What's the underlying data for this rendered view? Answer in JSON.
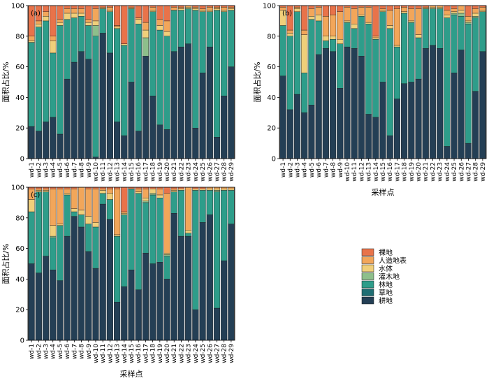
{
  "colors": {
    "裸地": "#E8734A",
    "人造地表": "#F2A65A",
    "水体": "#F0CF7A",
    "灌木地": "#8DBF8B",
    "林地": "#2E9D8A",
    "草地": "#1F6E73",
    "耕地": "#243F55"
  },
  "legend": [
    "裸地",
    "人造地表",
    "水体",
    "灌木地",
    "林地",
    "草地",
    "耕地"
  ],
  "chart_data": [
    {
      "type": "bar",
      "stacked": true,
      "panel_label": "(a)",
      "xlabel": "",
      "ylabel": "面积占比/%",
      "ylim": [
        0,
        100
      ],
      "yticks": [
        0,
        20,
        40,
        60,
        80,
        100
      ],
      "categories": [
        "wd-1",
        "wd-2",
        "wd-3",
        "wd-4",
        "wd-5",
        "wd-6",
        "wd-7",
        "wd-8",
        "wd-9",
        "wd-10",
        "wd-11",
        "wd-12",
        "wd-13",
        "wd-14",
        "wd-15",
        "wd-16",
        "wd-17",
        "wd-18",
        "wd-19",
        "wd-20",
        "wd-21",
        "wd-22",
        "wd-23",
        "wd-24",
        "wd-25",
        "wd-26",
        "wd-27",
        "wd-28",
        "wd-29"
      ],
      "series": [
        {
          "name": "耕地",
          "values": [
            21,
            18,
            24,
            27,
            16,
            52,
            63,
            70,
            65,
            1,
            82,
            69,
            24,
            15,
            50,
            18,
            67,
            41,
            22,
            19,
            70,
            73,
            75,
            20,
            56,
            73,
            14,
            41,
            60
          ]
        },
        {
          "name": "草地",
          "values": [
            0,
            0,
            0,
            0,
            0,
            0,
            0,
            0,
            0,
            0,
            0,
            0,
            0,
            0,
            0,
            0,
            0,
            0,
            0,
            0,
            0,
            0,
            0,
            0,
            0,
            0,
            0,
            0,
            0
          ]
        },
        {
          "name": "林地",
          "values": [
            55,
            68,
            66,
            42,
            71,
            39,
            29,
            23,
            22,
            79,
            16,
            27,
            61,
            59,
            48,
            70,
            0,
            55,
            62,
            61,
            27,
            24,
            23,
            77,
            40,
            23,
            83,
            55,
            37
          ]
        },
        {
          "name": "灌木地",
          "values": [
            0,
            0,
            0,
            0,
            0,
            0,
            0,
            0,
            0,
            7,
            0,
            0,
            0,
            0,
            0,
            0,
            12,
            0,
            0,
            0,
            0,
            0,
            0,
            0,
            0,
            0,
            0,
            0,
            0
          ]
        },
        {
          "name": "水体",
          "values": [
            1,
            2,
            3,
            8,
            2,
            4,
            3,
            2,
            2,
            3,
            0,
            1,
            1,
            1,
            0,
            3,
            5,
            1,
            3,
            3,
            0,
            1,
            1,
            1,
            1,
            1,
            1,
            1,
            1
          ]
        },
        {
          "name": "人造地表",
          "values": [
            3,
            2,
            3,
            3,
            2,
            3,
            3,
            3,
            2,
            8,
            1,
            2,
            1,
            0,
            1,
            1,
            5,
            2,
            4,
            7,
            2,
            1,
            1,
            1,
            1,
            2,
            1,
            2,
            1
          ]
        },
        {
          "name": "裸地",
          "values": [
            20,
            10,
            4,
            20,
            9,
            2,
            2,
            2,
            9,
            2,
            1,
            1,
            13,
            25,
            1,
            8,
            11,
            1,
            9,
            10,
            1,
            1,
            0,
            1,
            2,
            1,
            1,
            1,
            1
          ]
        }
      ]
    },
    {
      "type": "bar",
      "stacked": true,
      "panel_label": "(b)",
      "xlabel": "采样点",
      "ylabel": "面积占比/%",
      "ylim": [
        0,
        100
      ],
      "yticks": [
        0,
        20,
        40,
        60,
        80,
        100
      ],
      "categories": [
        "wd-1",
        "wd-2",
        "wd-3",
        "wd-4",
        "wd-5",
        "wd-6",
        "wd-7",
        "wd-8",
        "wd-9",
        "wd-10",
        "wd-11",
        "wd-12",
        "wd-13",
        "wd-14",
        "wd-15",
        "wd-16",
        "wd-17",
        "wd-18",
        "wd-19",
        "wd-20",
        "wd-21",
        "wd-22",
        "wd-23",
        "wd-24",
        "wd-25",
        "wd-26",
        "wd-27",
        "wd-28",
        "wd-29"
      ],
      "series": [
        {
          "name": "耕地",
          "values": [
            54,
            32,
            42,
            30,
            35,
            68,
            72,
            70,
            46,
            73,
            72,
            67,
            29,
            27,
            50,
            15,
            39,
            49,
            50,
            52,
            72,
            74,
            72,
            8,
            56,
            71,
            10,
            44,
            70
          ]
        },
        {
          "name": "草地",
          "values": [
            0,
            0,
            0,
            0,
            0,
            0,
            0,
            0,
            0,
            0,
            0,
            0,
            0,
            0,
            0,
            0,
            0,
            0,
            0,
            0,
            0,
            0,
            0,
            0,
            0,
            0,
            0,
            0,
            0
          ]
        },
        {
          "name": "林地",
          "values": [
            33,
            48,
            54,
            26,
            56,
            22,
            5,
            8,
            29,
            16,
            13,
            26,
            59,
            51,
            46,
            70,
            34,
            46,
            39,
            27,
            26,
            24,
            26,
            84,
            38,
            22,
            78,
            48,
            26
          ]
        },
        {
          "name": "灌木地",
          "values": [
            0,
            0,
            0,
            0,
            0,
            0,
            0,
            0,
            0,
            0,
            0,
            0,
            0,
            0,
            0,
            0,
            0,
            0,
            0,
            0,
            0,
            0,
            0,
            0,
            1,
            2,
            1,
            1,
            0
          ]
        },
        {
          "name": "水体",
          "values": [
            10,
            2,
            2,
            25,
            2,
            4,
            3,
            2,
            3,
            1,
            3,
            1,
            1,
            1,
            1,
            2,
            1,
            1,
            1,
            2,
            0,
            1,
            1,
            2,
            1,
            2,
            1,
            2,
            1
          ]
        },
        {
          "name": "人造地表",
          "values": [
            2,
            2,
            1,
            3,
            5,
            5,
            13,
            14,
            18,
            9,
            10,
            5,
            10,
            1,
            1,
            10,
            24,
            3,
            8,
            17,
            1,
            1,
            1,
            3,
            2,
            3,
            3,
            3,
            2
          ]
        },
        {
          "name": "裸地",
          "values": [
            1,
            16,
            1,
            16,
            2,
            1,
            7,
            6,
            4,
            1,
            2,
            1,
            1,
            20,
            2,
            3,
            2,
            1,
            2,
            2,
            1,
            0,
            0,
            3,
            2,
            0,
            7,
            2,
            1
          ]
        }
      ]
    },
    {
      "type": "bar",
      "stacked": true,
      "panel_label": "(c)",
      "xlabel": "采样点",
      "ylabel": "面积占比/%",
      "ylim": [
        0,
        100
      ],
      "yticks": [
        0,
        20,
        40,
        60,
        80,
        100
      ],
      "categories": [
        "wd-1",
        "wd-2",
        "wd-3",
        "wd-4",
        "wd-5",
        "wd-6",
        "wd-7",
        "wd-8",
        "wd-9",
        "wd-10",
        "wd-11",
        "wd-12",
        "wd-13",
        "wd-14",
        "wd-15",
        "wd-16",
        "wd-17",
        "wd-18",
        "wd-19",
        "wd-20",
        "wd-21",
        "wd-22",
        "wd-23",
        "wd-24",
        "wd-25",
        "wd-26",
        "wd-27",
        "wd-28",
        "wd-29"
      ],
      "series": [
        {
          "name": "耕地",
          "values": [
            50,
            44,
            55,
            46,
            39,
            68,
            81,
            74,
            58,
            47,
            89,
            79,
            25,
            35,
            46,
            33,
            57,
            50,
            51,
            40,
            83,
            68,
            68,
            20,
            77,
            82,
            21,
            52,
            76
          ]
        },
        {
          "name": "草地",
          "values": [
            0,
            0,
            0,
            0,
            0,
            0,
            0,
            0,
            0,
            0,
            0,
            0,
            0,
            0,
            0,
            0,
            0,
            0,
            0,
            0,
            0,
            0,
            0,
            0,
            0,
            0,
            0,
            0,
            0
          ]
        },
        {
          "name": "林地",
          "values": [
            34,
            53,
            42,
            21,
            36,
            27,
            3,
            8,
            18,
            27,
            7,
            13,
            43,
            47,
            53,
            63,
            33,
            45,
            42,
            15,
            14,
            30,
            2,
            78,
            21,
            16,
            76,
            46,
            22
          ]
        },
        {
          "name": "灌木地",
          "values": [
            0,
            0,
            0,
            1,
            0,
            0,
            0,
            0,
            0,
            0,
            0,
            0,
            0,
            0,
            0,
            0,
            1,
            1,
            0,
            1,
            0,
            0,
            0,
            0,
            0,
            0,
            1,
            0,
            0
          ]
        },
        {
          "name": "水体",
          "values": [
            8,
            1,
            1,
            7,
            1,
            1,
            2,
            3,
            5,
            3,
            2,
            4,
            1,
            1,
            0,
            1,
            2,
            3,
            2,
            1,
            1,
            1,
            2,
            1,
            1,
            1,
            1,
            1,
            1
          ]
        },
        {
          "name": "人造地表",
          "values": [
            7,
            1,
            1,
            24,
            23,
            3,
            13,
            15,
            18,
            22,
            1,
            3,
            30,
            1,
            0,
            2,
            6,
            0,
            4,
            39,
            1,
            0,
            28,
            0,
            0,
            1,
            1,
            1,
            1
          ]
        },
        {
          "name": "裸地",
          "values": [
            1,
            1,
            1,
            1,
            1,
            1,
            1,
            0,
            1,
            1,
            1,
            1,
            1,
            16,
            1,
            1,
            1,
            1,
            1,
            4,
            1,
            1,
            0,
            1,
            1,
            0,
            0,
            0,
            0
          ]
        }
      ]
    }
  ]
}
